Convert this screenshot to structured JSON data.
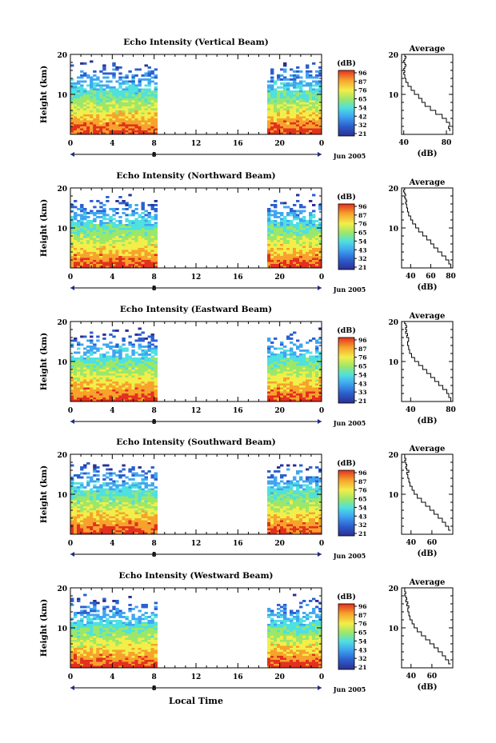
{
  "figure": {
    "xlabel_bottom": "Local Time"
  },
  "chart_data": [
    {
      "type": "heatmap",
      "title": "Echo Intensity (Vertical Beam)",
      "ylabel": "Height (km)",
      "yticks": [
        "10",
        "20"
      ],
      "xticks": [
        "0",
        "4",
        "8",
        "12",
        "16",
        "20",
        "0"
      ],
      "date_tick": "8",
      "date_label": "Jun 2005",
      "colorbar": {
        "unit": "(dB)",
        "ticks": [
          "96",
          "87",
          "76",
          "65",
          "54",
          "42",
          "32",
          "21"
        ]
      },
      "data_periods_hours": [
        [
          0,
          8.3
        ],
        [
          18.8,
          24
        ]
      ],
      "profile": {
        "title": "Average",
        "xlabel": "(dB)",
        "xticks": [
          "40",
          "80"
        ],
        "yticks": [
          "10",
          "20"
        ],
        "x_db": [
          84,
          83,
          82,
          83,
          80,
          76,
          70,
          65,
          60,
          57,
          54,
          50,
          47,
          44,
          42,
          41,
          40,
          41,
          40,
          41,
          42,
          41,
          40,
          41,
          42,
          41
        ],
        "y_km": [
          1,
          1.5,
          2,
          3,
          4,
          5,
          6,
          7,
          8,
          9,
          10,
          11,
          12,
          13,
          14,
          15,
          15.5,
          16,
          16.5,
          17,
          17.5,
          18,
          18.5,
          19,
          19.5,
          20
        ],
        "xlim": [
          38,
          86
        ]
      }
    },
    {
      "type": "heatmap",
      "title": "Echo Intensity (Northward Beam)",
      "ylabel": "Height (km)",
      "yticks": [
        "10",
        "20"
      ],
      "xticks": [
        "0",
        "4",
        "8",
        "12",
        "16",
        "20",
        "0"
      ],
      "date_tick": "8",
      "date_label": "Jun 2005",
      "colorbar": {
        "unit": "(dB)",
        "ticks": [
          "96",
          "87",
          "76",
          "65",
          "54",
          "43",
          "32",
          "21"
        ]
      },
      "data_periods_hours": [
        [
          0,
          8.3
        ],
        [
          18.8,
          24
        ]
      ],
      "profile": {
        "title": "Average",
        "xlabel": "(dB)",
        "xticks": [
          "40",
          "60",
          "80"
        ],
        "yticks": [
          "10",
          "20"
        ],
        "x_db": [
          80,
          78,
          75,
          71,
          67,
          63,
          60,
          56,
          52,
          48,
          45,
          42,
          40,
          38,
          37,
          36,
          35,
          36,
          35,
          34,
          35,
          34,
          33,
          34
        ],
        "y_km": [
          1,
          2,
          3,
          4,
          5,
          6,
          7,
          8,
          9,
          10,
          11,
          12,
          13,
          14,
          15,
          16,
          16.5,
          17,
          17.5,
          18,
          18.5,
          19,
          19.5,
          20
        ],
        "xlim": [
          31,
          82
        ]
      }
    },
    {
      "type": "heatmap",
      "title": "Echo Intensity (Eastward Beam)",
      "ylabel": "Height (km)",
      "yticks": [
        "10",
        "20"
      ],
      "xticks": [
        "0",
        "4",
        "8",
        "12",
        "16",
        "20",
        "0"
      ],
      "date_tick": "8",
      "date_label": "Jun 2005",
      "colorbar": {
        "unit": "(dB)",
        "ticks": [
          "96",
          "87",
          "76",
          "65",
          "54",
          "43",
          "33",
          "21"
        ]
      },
      "data_periods_hours": [
        [
          0,
          8.3
        ],
        [
          18.8,
          24
        ]
      ],
      "profile": {
        "title": "Average",
        "xlabel": "(dB)",
        "xticks": [
          "40",
          "80"
        ],
        "yticks": [
          "10",
          "20"
        ],
        "x_db": [
          80,
          78,
          76,
          72,
          68,
          64,
          60,
          56,
          52,
          48,
          44,
          41,
          39,
          38,
          37,
          38,
          36,
          37,
          35,
          36,
          35,
          36,
          35,
          34
        ],
        "y_km": [
          1,
          2,
          3,
          4,
          5,
          6,
          7,
          8,
          9,
          10,
          11,
          12,
          13,
          14,
          15,
          16,
          16.5,
          17,
          17.5,
          18,
          18.5,
          19,
          19.5,
          20
        ],
        "xlim": [
          31,
          82
        ]
      }
    },
    {
      "type": "heatmap",
      "title": "Echo Intensity (Southward Beam)",
      "ylabel": "Height (km)",
      "yticks": [
        "10",
        "20"
      ],
      "xticks": [
        "0",
        "4",
        "8",
        "12",
        "16",
        "20",
        "0"
      ],
      "date_tick": "8",
      "date_label": "Jun 2005",
      "colorbar": {
        "unit": "(dB)",
        "ticks": [
          "96",
          "87",
          "76",
          "65",
          "54",
          "43",
          "32",
          "21"
        ]
      },
      "data_periods_hours": [
        [
          0,
          8.3
        ],
        [
          18.8,
          24
        ]
      ],
      "profile": {
        "title": "Average",
        "xlabel": "(dB)",
        "xticks": [
          "40",
          "60"
        ],
        "yticks": [
          "10",
          "20"
        ],
        "x_db": [
          78,
          76,
          73,
          70,
          66,
          62,
          58,
          54,
          50,
          46,
          43,
          41,
          39,
          38,
          37,
          36,
          38,
          36,
          35,
          36,
          35,
          34,
          35,
          34
        ],
        "y_km": [
          1,
          2,
          3,
          4,
          5,
          6,
          7,
          8,
          9,
          10,
          11,
          12,
          13,
          14,
          15,
          15.5,
          16,
          16.5,
          17,
          17.5,
          18,
          18.5,
          19,
          20
        ],
        "xlim": [
          31,
          80
        ]
      }
    },
    {
      "type": "heatmap",
      "title": "Echo Intensity (Westward Beam)",
      "ylabel": "Height (km)",
      "yticks": [
        "10",
        "20"
      ],
      "xticks": [
        "0",
        "4",
        "8",
        "12",
        "16",
        "20",
        "0"
      ],
      "date_tick": "8",
      "date_label": "Jun 2005",
      "colorbar": {
        "unit": "(dB)",
        "ticks": [
          "96",
          "87",
          "76",
          "65",
          "54",
          "43",
          "32",
          "21"
        ]
      },
      "data_periods_hours": [
        [
          0,
          8.3
        ],
        [
          18.8,
          24
        ]
      ],
      "profile": {
        "title": "Average",
        "xlabel": "(dB)",
        "xticks": [
          "40",
          "60"
        ],
        "yticks": [
          "10",
          "20"
        ],
        "x_db": [
          78,
          76,
          73,
          70,
          66,
          62,
          58,
          54,
          50,
          46,
          43,
          41,
          39,
          38,
          37,
          38,
          36,
          37,
          35,
          36,
          35,
          34,
          35,
          34
        ],
        "y_km": [
          1,
          2,
          3,
          4,
          5,
          6,
          7,
          8,
          9,
          10,
          11,
          12,
          13,
          14,
          15,
          15.5,
          16,
          16.5,
          17,
          17.5,
          18,
          18.5,
          19,
          20
        ],
        "xlim": [
          31,
          80
        ]
      }
    }
  ]
}
